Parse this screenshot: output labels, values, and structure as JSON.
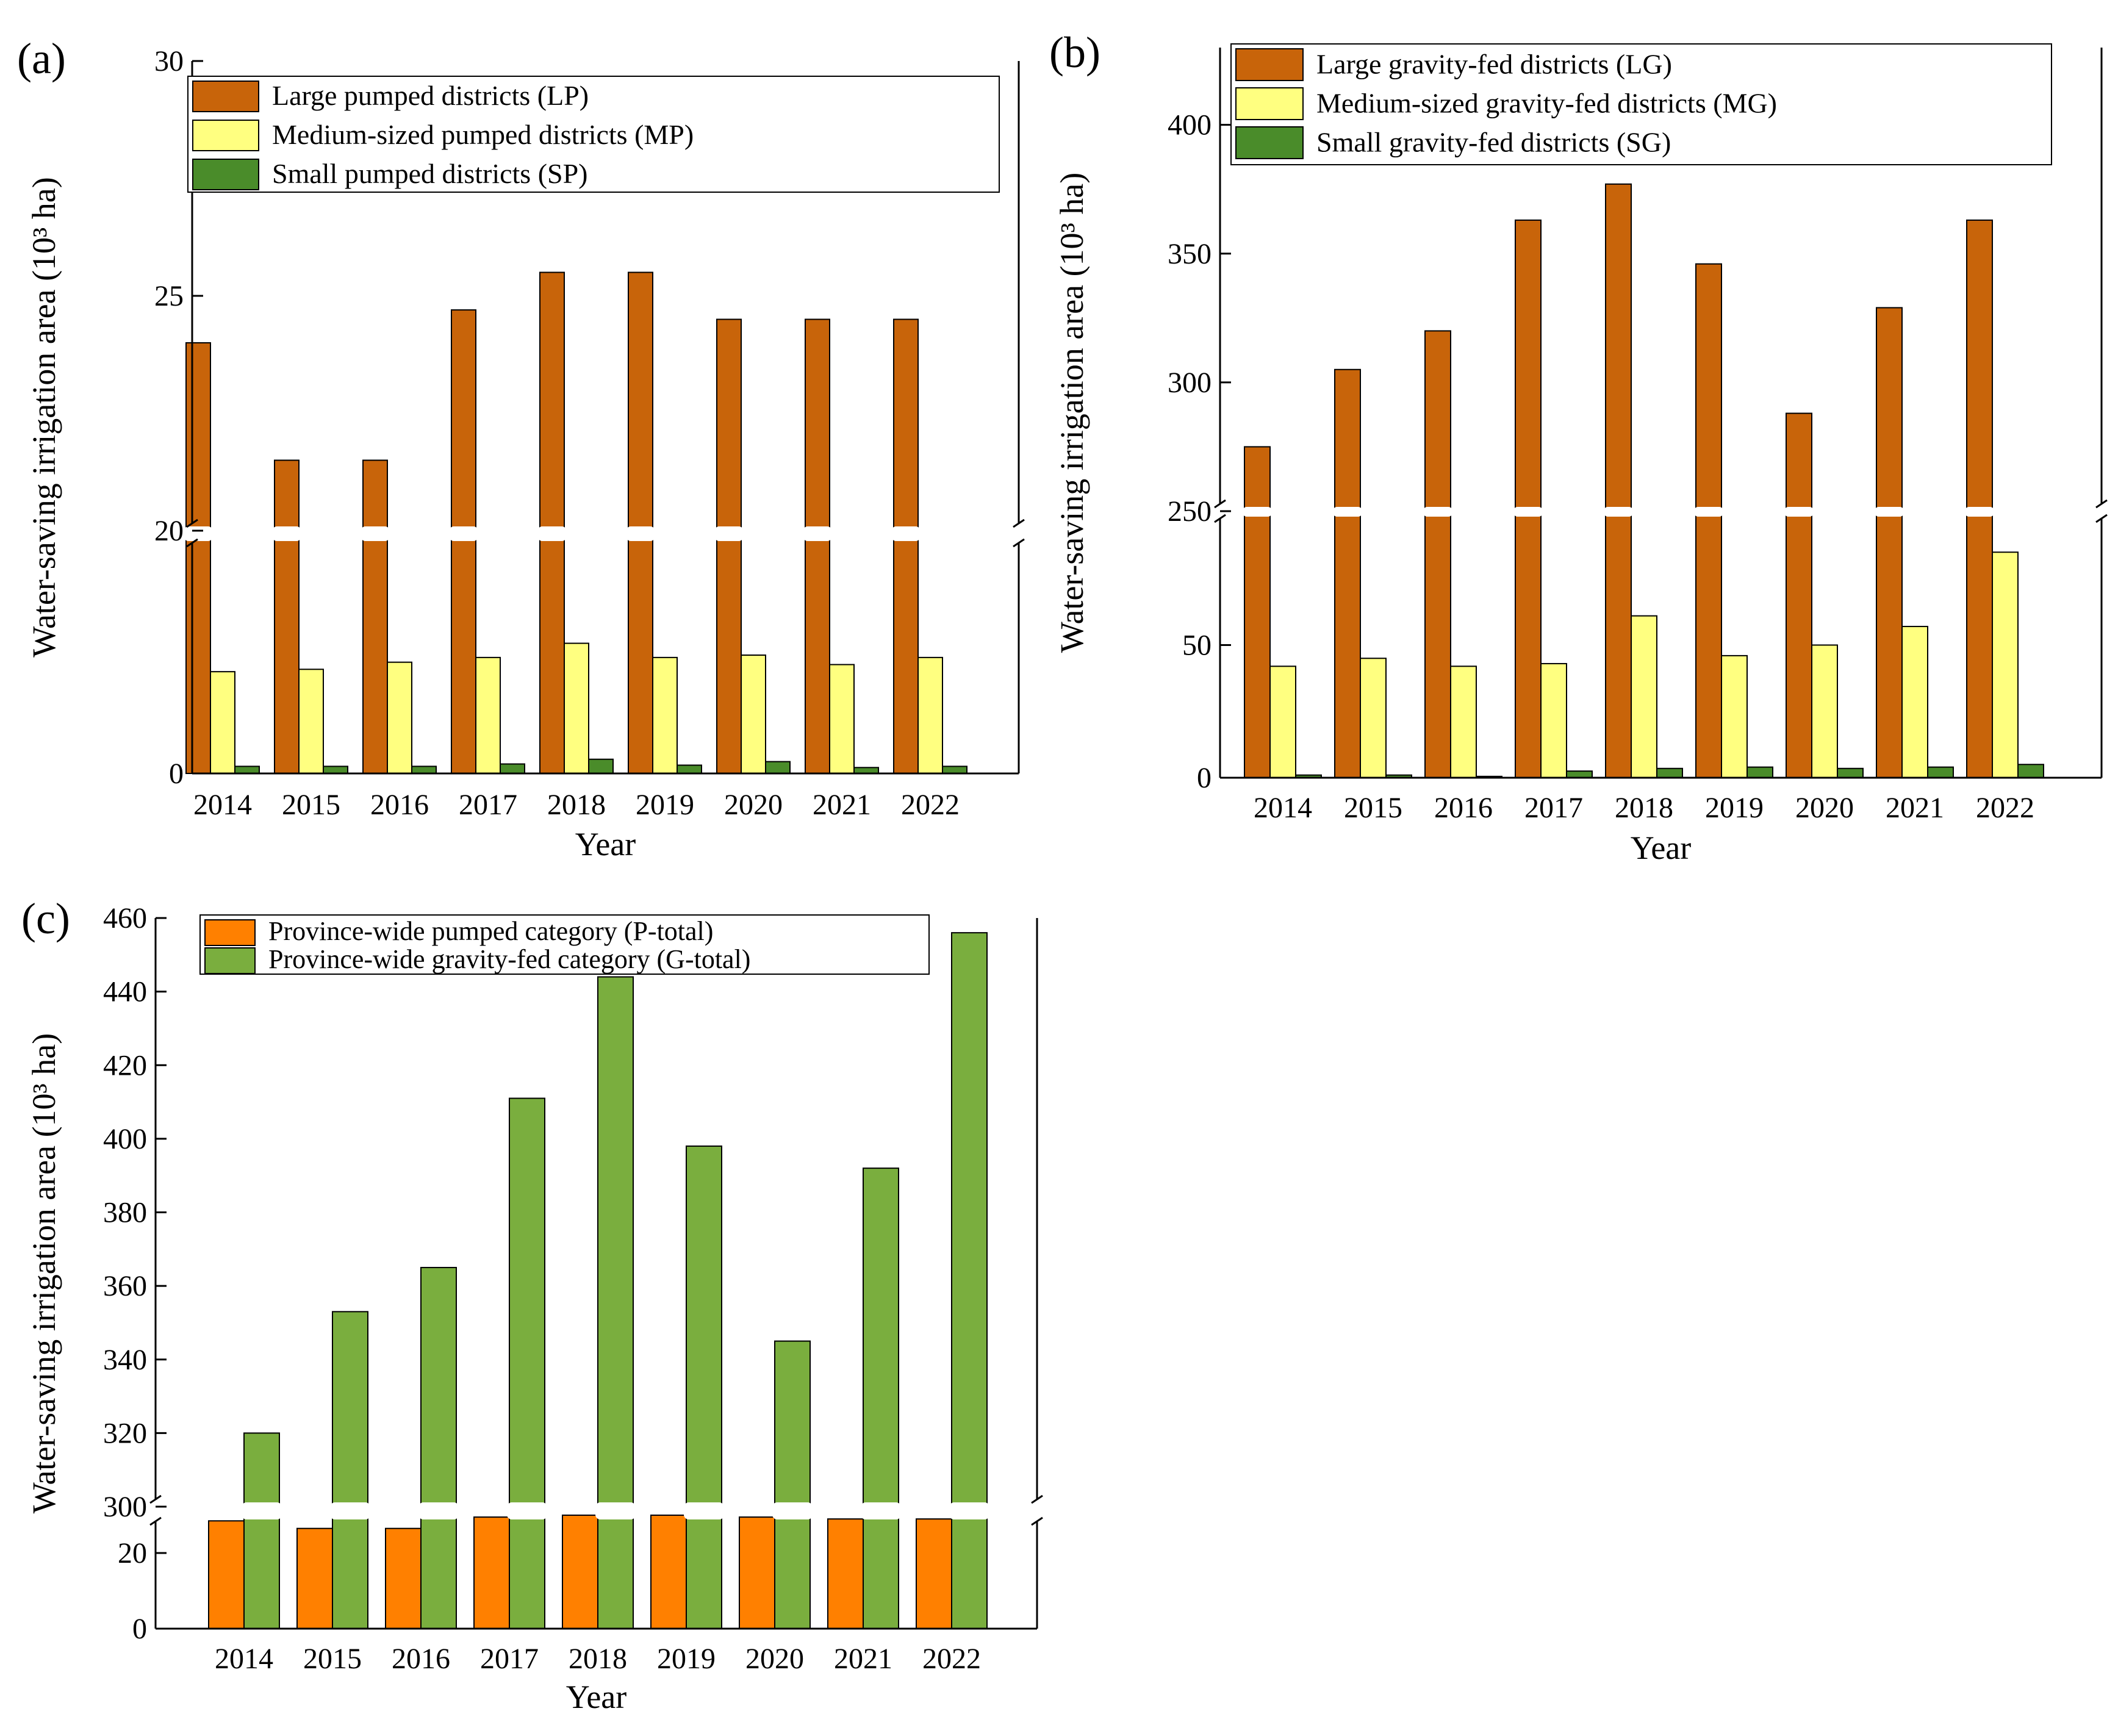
{
  "chart_data": [
    {
      "panel_label": "(a)",
      "type": "bar",
      "ylabel": "Water-saving irrigation area (10³ ha)",
      "xlabel": "Year",
      "categories": [
        "2014",
        "2015",
        "2016",
        "2017",
        "2018",
        "2019",
        "2020",
        "2021",
        "2022"
      ],
      "axis_break": true,
      "upper_ylim": [
        20,
        30
      ],
      "upper_yticks": [
        "20",
        "25",
        "30"
      ],
      "lower_ylim": [
        0,
        10
      ],
      "lower_yticks": [
        "0"
      ],
      "series": [
        {
          "name": "Large pumped districts (LP)",
          "color": "#C8640A",
          "values": [
            24.0,
            21.5,
            21.5,
            24.7,
            25.5,
            25.5,
            24.5,
            24.5,
            24.5
          ]
        },
        {
          "name": "Medium-sized pumped districts (MP)",
          "color": "#FFFF80",
          "values": [
            4.3,
            4.4,
            4.7,
            4.9,
            5.5,
            4.9,
            5.0,
            4.6,
            4.9
          ]
        },
        {
          "name": "Small pumped districts (SP)",
          "color": "#4A8C2A",
          "values": [
            0.3,
            0.3,
            0.3,
            0.4,
            0.6,
            0.35,
            0.5,
            0.25,
            0.3
          ]
        }
      ],
      "legend_position": "top"
    },
    {
      "panel_label": "(b)",
      "type": "bar",
      "ylabel": "Water-saving irrigation area (10³ ha)",
      "xlabel": "Year",
      "categories": [
        "2014",
        "2015",
        "2016",
        "2017",
        "2018",
        "2019",
        "2020",
        "2021",
        "2022"
      ],
      "axis_break": true,
      "upper_ylim": [
        250,
        430
      ],
      "upper_yticks": [
        "250",
        "300",
        "350",
        "400"
      ],
      "lower_ylim": [
        0,
        100
      ],
      "lower_yticks": [
        "0",
        "50"
      ],
      "series": [
        {
          "name": "Large gravity-fed districts (LG)",
          "color": "#C8640A",
          "values": [
            275,
            305,
            320,
            363,
            377,
            346,
            288,
            329,
            363
          ]
        },
        {
          "name": "Medium-sized gravity-fed districts (MG)",
          "color": "#FFFF80",
          "values": [
            42,
            45,
            42,
            43,
            61,
            46,
            50,
            57,
            85
          ]
        },
        {
          "name": "Small gravity-fed districts (SG)",
          "color": "#4A8C2A",
          "values": [
            1,
            1,
            0.5,
            2.5,
            3.5,
            4,
            3.5,
            4,
            5
          ]
        }
      ],
      "legend_position": "top"
    },
    {
      "panel_label": "(c)",
      "type": "bar",
      "ylabel": "Water-saving irrigation area (10³ ha)",
      "xlabel": "Year",
      "categories": [
        "2014",
        "2015",
        "2016",
        "2017",
        "2018",
        "2019",
        "2020",
        "2021",
        "2022"
      ],
      "axis_break": true,
      "upper_ylim": [
        300,
        460
      ],
      "upper_yticks": [
        "300",
        "320",
        "340",
        "360",
        "380",
        "400",
        "420",
        "440",
        "460"
      ],
      "lower_ylim": [
        0,
        30
      ],
      "lower_yticks": [
        "0",
        "20"
      ],
      "series": [
        {
          "name": "Province-wide pumped category (P-total)",
          "color": "#FF8000",
          "values": [
            28.5,
            26.5,
            26.5,
            29.5,
            31,
            30.5,
            29.5,
            29,
            29
          ]
        },
        {
          "name": "Province-wide gravity-fed category (G-total)",
          "color": "#7AAE3E",
          "values": [
            320,
            353,
            365,
            411,
            444,
            398,
            345,
            392,
            456
          ]
        }
      ],
      "legend_position": "top-left"
    }
  ]
}
